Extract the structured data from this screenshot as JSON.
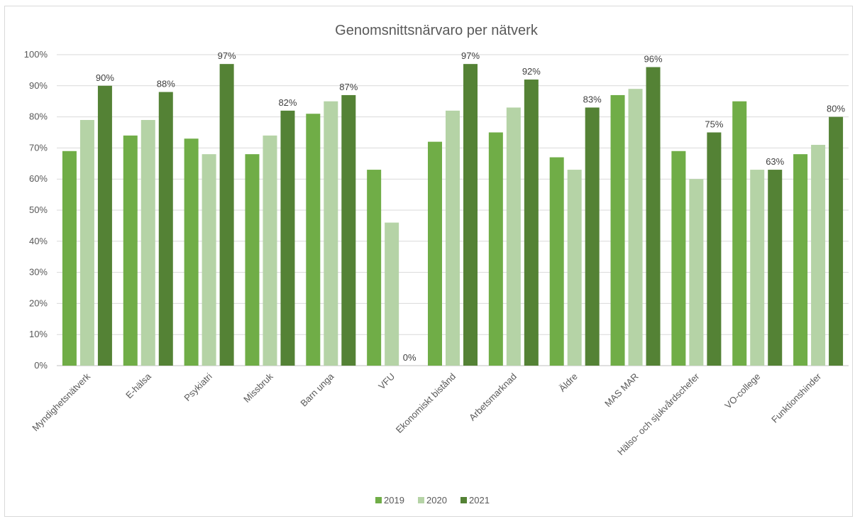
{
  "chart_data": {
    "type": "bar",
    "title": "Genomsnittsnärvaro per nätverk",
    "categories": [
      "Myndighetsnätverk",
      "E-hälsa",
      "Psykiatri",
      "Missbruk",
      "Barn unga",
      "VFU",
      "Ekonomiskt bistånd",
      "Arbetsmarknad",
      "Äldre",
      "MAS MAR",
      "Hälso- och sjukvårdschefer",
      "VO-college",
      "Funktionshinder"
    ],
    "series": [
      {
        "name": "2019",
        "color": "#70ad47",
        "values": [
          69,
          74,
          73,
          68,
          81,
          63,
          72,
          75,
          67,
          87,
          69,
          85,
          68
        ]
      },
      {
        "name": "2020",
        "color": "#b5d3a6",
        "values": [
          79,
          79,
          68,
          74,
          85,
          46,
          82,
          83,
          63,
          89,
          60,
          63,
          71
        ]
      },
      {
        "name": "2021",
        "color": "#548235",
        "values": [
          90,
          88,
          97,
          82,
          87,
          0,
          97,
          92,
          83,
          96,
          75,
          63,
          80
        ]
      }
    ],
    "data_labels_series": "2021",
    "data_labels": [
      "90%",
      "88%",
      "97%",
      "82%",
      "87%",
      "0%",
      "97%",
      "92%",
      "83%",
      "96%",
      "75%",
      "63%",
      "80%"
    ],
    "yticks": [
      "0%",
      "10%",
      "20%",
      "30%",
      "40%",
      "50%",
      "60%",
      "70%",
      "80%",
      "90%",
      "100%"
    ],
    "ylim": [
      0,
      100
    ],
    "grid": true,
    "legend_position": "bottom"
  }
}
